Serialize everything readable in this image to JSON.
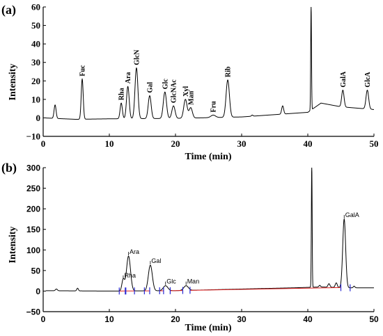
{
  "chart_data": [
    {
      "type": "line",
      "panel_label": "(a)",
      "xlabel": "Time (min)",
      "ylabel": "Intensity",
      "xlim": [
        0,
        50
      ],
      "ylim": [
        -10,
        60
      ],
      "x_ticks": [
        0,
        10,
        20,
        30,
        40,
        50
      ],
      "y_ticks": [
        -10,
        0,
        10,
        20,
        30,
        40,
        50,
        60
      ],
      "grid": false,
      "baseline": [
        [
          0,
          0
        ],
        [
          5,
          -0.8
        ],
        [
          10,
          -0.5
        ],
        [
          20,
          -0.3
        ],
        [
          30,
          0.5
        ],
        [
          36,
          2
        ],
        [
          40,
          3
        ],
        [
          42,
          8
        ],
        [
          45,
          6
        ],
        [
          50,
          4.5
        ]
      ],
      "peaks": [
        {
          "label": "",
          "x": 1.8,
          "y": 7,
          "w": 0.15
        },
        {
          "label": "Fuc",
          "x": 5.9,
          "y": 21,
          "w": 0.15
        },
        {
          "label": "Rha",
          "x": 11.8,
          "y": 8,
          "w": 0.17
        },
        {
          "label": "Ara",
          "x": 12.8,
          "y": 17,
          "w": 0.2
        },
        {
          "label": "GlcN",
          "x": 14.1,
          "y": 27,
          "w": 0.22
        },
        {
          "label": "Gal",
          "x": 16.1,
          "y": 12,
          "w": 0.22
        },
        {
          "label": "Glc",
          "x": 18.4,
          "y": 14,
          "w": 0.24
        },
        {
          "label": "GlcNAc",
          "x": 19.7,
          "y": 6.5,
          "w": 0.24
        },
        {
          "label": "Xyl",
          "x": 21.5,
          "y": 10,
          "w": 0.25
        },
        {
          "label": "Man",
          "x": 22.3,
          "y": 5.5,
          "w": 0.25
        },
        {
          "label": "Fru",
          "x": 25.7,
          "y": 1.5,
          "w": 0.35
        },
        {
          "label": "Rib",
          "x": 27.9,
          "y": 20.5,
          "w": 0.25
        },
        {
          "label": "",
          "x": 31.6,
          "y": 1.5,
          "w": 0.12
        },
        {
          "label": "",
          "x": 36.2,
          "y": 6.5,
          "w": 0.15
        },
        {
          "label": "",
          "x": 40.5,
          "y": 60,
          "w": 0.06
        },
        {
          "label": "GalA",
          "x": 45.3,
          "y": 15,
          "w": 0.18
        },
        {
          "label": "GlcA",
          "x": 49,
          "y": 15,
          "w": 0.2
        }
      ]
    },
    {
      "type": "line",
      "panel_label": "(b)",
      "xlabel": "Time (min)",
      "ylabel": "Intensity",
      "xlim": [
        0,
        50
      ],
      "ylim": [
        -50,
        300
      ],
      "x_ticks": [
        0,
        10,
        20,
        30,
        40,
        50
      ],
      "y_ticks": [
        -50,
        0,
        50,
        100,
        150,
        200,
        250,
        300
      ],
      "grid": false,
      "baseline": [
        [
          0,
          1
        ],
        [
          10,
          0
        ],
        [
          20,
          1
        ],
        [
          30,
          5
        ],
        [
          38,
          8
        ],
        [
          40,
          9
        ],
        [
          42,
          10
        ],
        [
          46,
          8
        ],
        [
          50,
          8
        ]
      ],
      "peaks": [
        {
          "label": "",
          "x": 2,
          "y": 5,
          "w": 0.15
        },
        {
          "label": "",
          "x": 5.2,
          "y": 7,
          "w": 0.12
        },
        {
          "label": "Rha",
          "x": 12.1,
          "y": 28,
          "w": 0.2
        },
        {
          "label": "Ara",
          "x": 12.9,
          "y": 85,
          "w": 0.3
        },
        {
          "label": "Gal",
          "x": 16.2,
          "y": 63,
          "w": 0.3
        },
        {
          "label": "Glc",
          "x": 18.5,
          "y": 13,
          "w": 0.35
        },
        {
          "label": "Man",
          "x": 21.6,
          "y": 13,
          "w": 0.35
        },
        {
          "label": "",
          "x": 40.6,
          "y": 305,
          "w": 0.06
        },
        {
          "label": "",
          "x": 41.8,
          "y": 14,
          "w": 0.12
        },
        {
          "label": "",
          "x": 43.2,
          "y": 18,
          "w": 0.15
        },
        {
          "label": "",
          "x": 44.3,
          "y": 20,
          "w": 0.15
        },
        {
          "label": "GalA",
          "x": 45.5,
          "y": 175,
          "w": 0.22
        },
        {
          "label": "",
          "x": 47,
          "y": 12,
          "w": 0.12
        }
      ],
      "integration_markers_x": [
        11.5,
        12.4,
        12.5,
        13.8,
        15.3,
        16.1,
        17.6,
        18.2,
        19.2,
        21.1,
        22.2,
        45.0,
        46.4
      ]
    }
  ],
  "colors": {
    "trace": "#000000",
    "axis": "#000000",
    "integration_marker": "#2828d4",
    "integration_baseline": "#e02020"
  }
}
